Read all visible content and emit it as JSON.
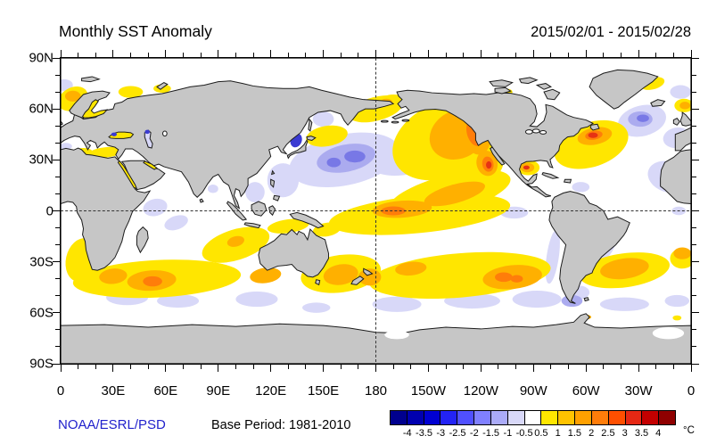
{
  "header": {
    "title": "Monthly SST Anomaly",
    "date_range": "2015/02/01 - 2015/02/28"
  },
  "footer": {
    "credit": "NOAA/ESRL/PSD",
    "base_period": "Base Period: 1981-2010"
  },
  "axes": {
    "lat_labels": [
      "90N",
      "60N",
      "30N",
      "0",
      "30S",
      "60S",
      "90S"
    ],
    "lon_labels": [
      "0",
      "30E",
      "60E",
      "90E",
      "120E",
      "150E",
      "180",
      "150W",
      "120W",
      "90W",
      "60W",
      "30W",
      "0"
    ]
  },
  "colorbar": {
    "unit": "°C",
    "boundary_labels": [
      "-4",
      "-3.5",
      "-3",
      "-2.5",
      "-2",
      "-1.5",
      "-1",
      "-0.5",
      "0.5",
      "1",
      "1.5",
      "2",
      "2.5",
      "3",
      "3.5",
      "4"
    ],
    "cell_colors": [
      "#00008E",
      "#0000B0",
      "#0000D2",
      "#2323F5",
      "#5050FF",
      "#8080FF",
      "#ABABF8",
      "#D8D8F8",
      "#FFFFFF",
      "#FFE600",
      "#FFC300",
      "#FFA000",
      "#FF7D0A",
      "#FF4F00",
      "#E62814",
      "#C30000",
      "#8F0000"
    ]
  },
  "chart_data": {
    "type": "heatmap",
    "subtype": "global geographic SST anomaly map, cylindrical equidistant projection",
    "title": "Monthly SST Anomaly",
    "period": "2015/02/01 - 2015/02/28",
    "base_period": "1981-2010",
    "source": "NOAA/ESRL/PSD",
    "unit": "°C",
    "lon_domain_deg_east": [
      0,
      360
    ],
    "lat_domain": [
      -90,
      90
    ],
    "tick_step_deg": {
      "major": 30,
      "minor": 10
    },
    "levels_c": [
      -4,
      -3.5,
      -3,
      -2.5,
      -2,
      -1.5,
      -1,
      -0.5,
      0.5,
      1,
      1.5,
      2,
      2.5,
      3,
      3.5,
      4
    ],
    "land_color": "#C6C6C6",
    "reference_lines": [
      "equator 0 deg (dashed)",
      "date line 180 deg (dashed)"
    ],
    "notable_anomalies": [
      {
        "region": "Northeast Pacific warm blob, Gulf of Alaska to Baja California",
        "lon": "190E-250E",
        "lat": "18N-60N",
        "anomaly_c": "+1 to +3"
      },
      {
        "region": "Western/central North Pacific cool pool east of Japan",
        "lon": "130E-215E",
        "lat": "15N-42N",
        "anomaly_c": "-0.5 to -2.5"
      },
      {
        "region": "Sea of Japan cool spot",
        "lon": "130E-140E",
        "lat": "37N-45N",
        "anomaly_c": "-2 to -3"
      },
      {
        "region": "Equatorial central Pacific warm band",
        "lon": "150E-255E",
        "lat": "12S-18N",
        "anomaly_c": "+0.5 to +2"
      },
      {
        "region": "North Atlantic cold blob south of Greenland",
        "lon": "315E-350E",
        "lat": "44N-62N",
        "anomaly_c": "-0.5 to -2.5"
      },
      {
        "region": "Gulf Stream / Newfoundland warm core",
        "lon": "285E-325E",
        "lat": "25N-48N",
        "anomaly_c": "+1 to +3.5"
      },
      {
        "region": "Gulf of Mexico warm spot",
        "lon": "260E-272E",
        "lat": "20N-28N",
        "anomaly_c": "+1 to +3"
      },
      {
        "region": "South Indian Ocean warm band",
        "lon": "10E-100E",
        "lat": "30S-48S",
        "anomaly_c": "+1 to +3"
      },
      {
        "region": "South Pacific warm band",
        "lon": "175E-280E",
        "lat": "28S-48S",
        "anomaly_c": "+1 to +2.5"
      },
      {
        "region": "South Atlantic warm band east of Argentina",
        "lon": "295E-350E",
        "lat": "25S-45S",
        "anomaly_c": "+1 to +2.5"
      },
      {
        "region": "Southern Ocean cool patches",
        "lat": "48S-62S",
        "anomaly_c": "-0.5 to -1.5"
      },
      {
        "region": "Chile coastal cool strip",
        "lon": "275E-287E",
        "lat": "10S-42S",
        "anomaly_c": "-0.5 to -1"
      },
      {
        "region": "Norwegian and Barents Sea warm patches",
        "lon": "0E-60E",
        "lat": "60N-75N",
        "anomaly_c": "+0.5 to +2"
      },
      {
        "region": "NE Atlantic off Iberia and NW Africa cool",
        "lon": "335E-360E",
        "lat": "10N-50N",
        "anomaly_c": "-0.5 to -1"
      },
      {
        "region": "Bering Sea / strait warm patch",
        "lon": "160E-200E",
        "lat": "52N-67N",
        "anomaly_c": "+0.5 to +1.5"
      },
      {
        "region": "Black Sea warm with cool spot; Baltic, Red Sea, Persian Gulf warm",
        "anomaly_c": "+0.5 to +1.5 (cool spot -2)"
      }
    ]
  }
}
